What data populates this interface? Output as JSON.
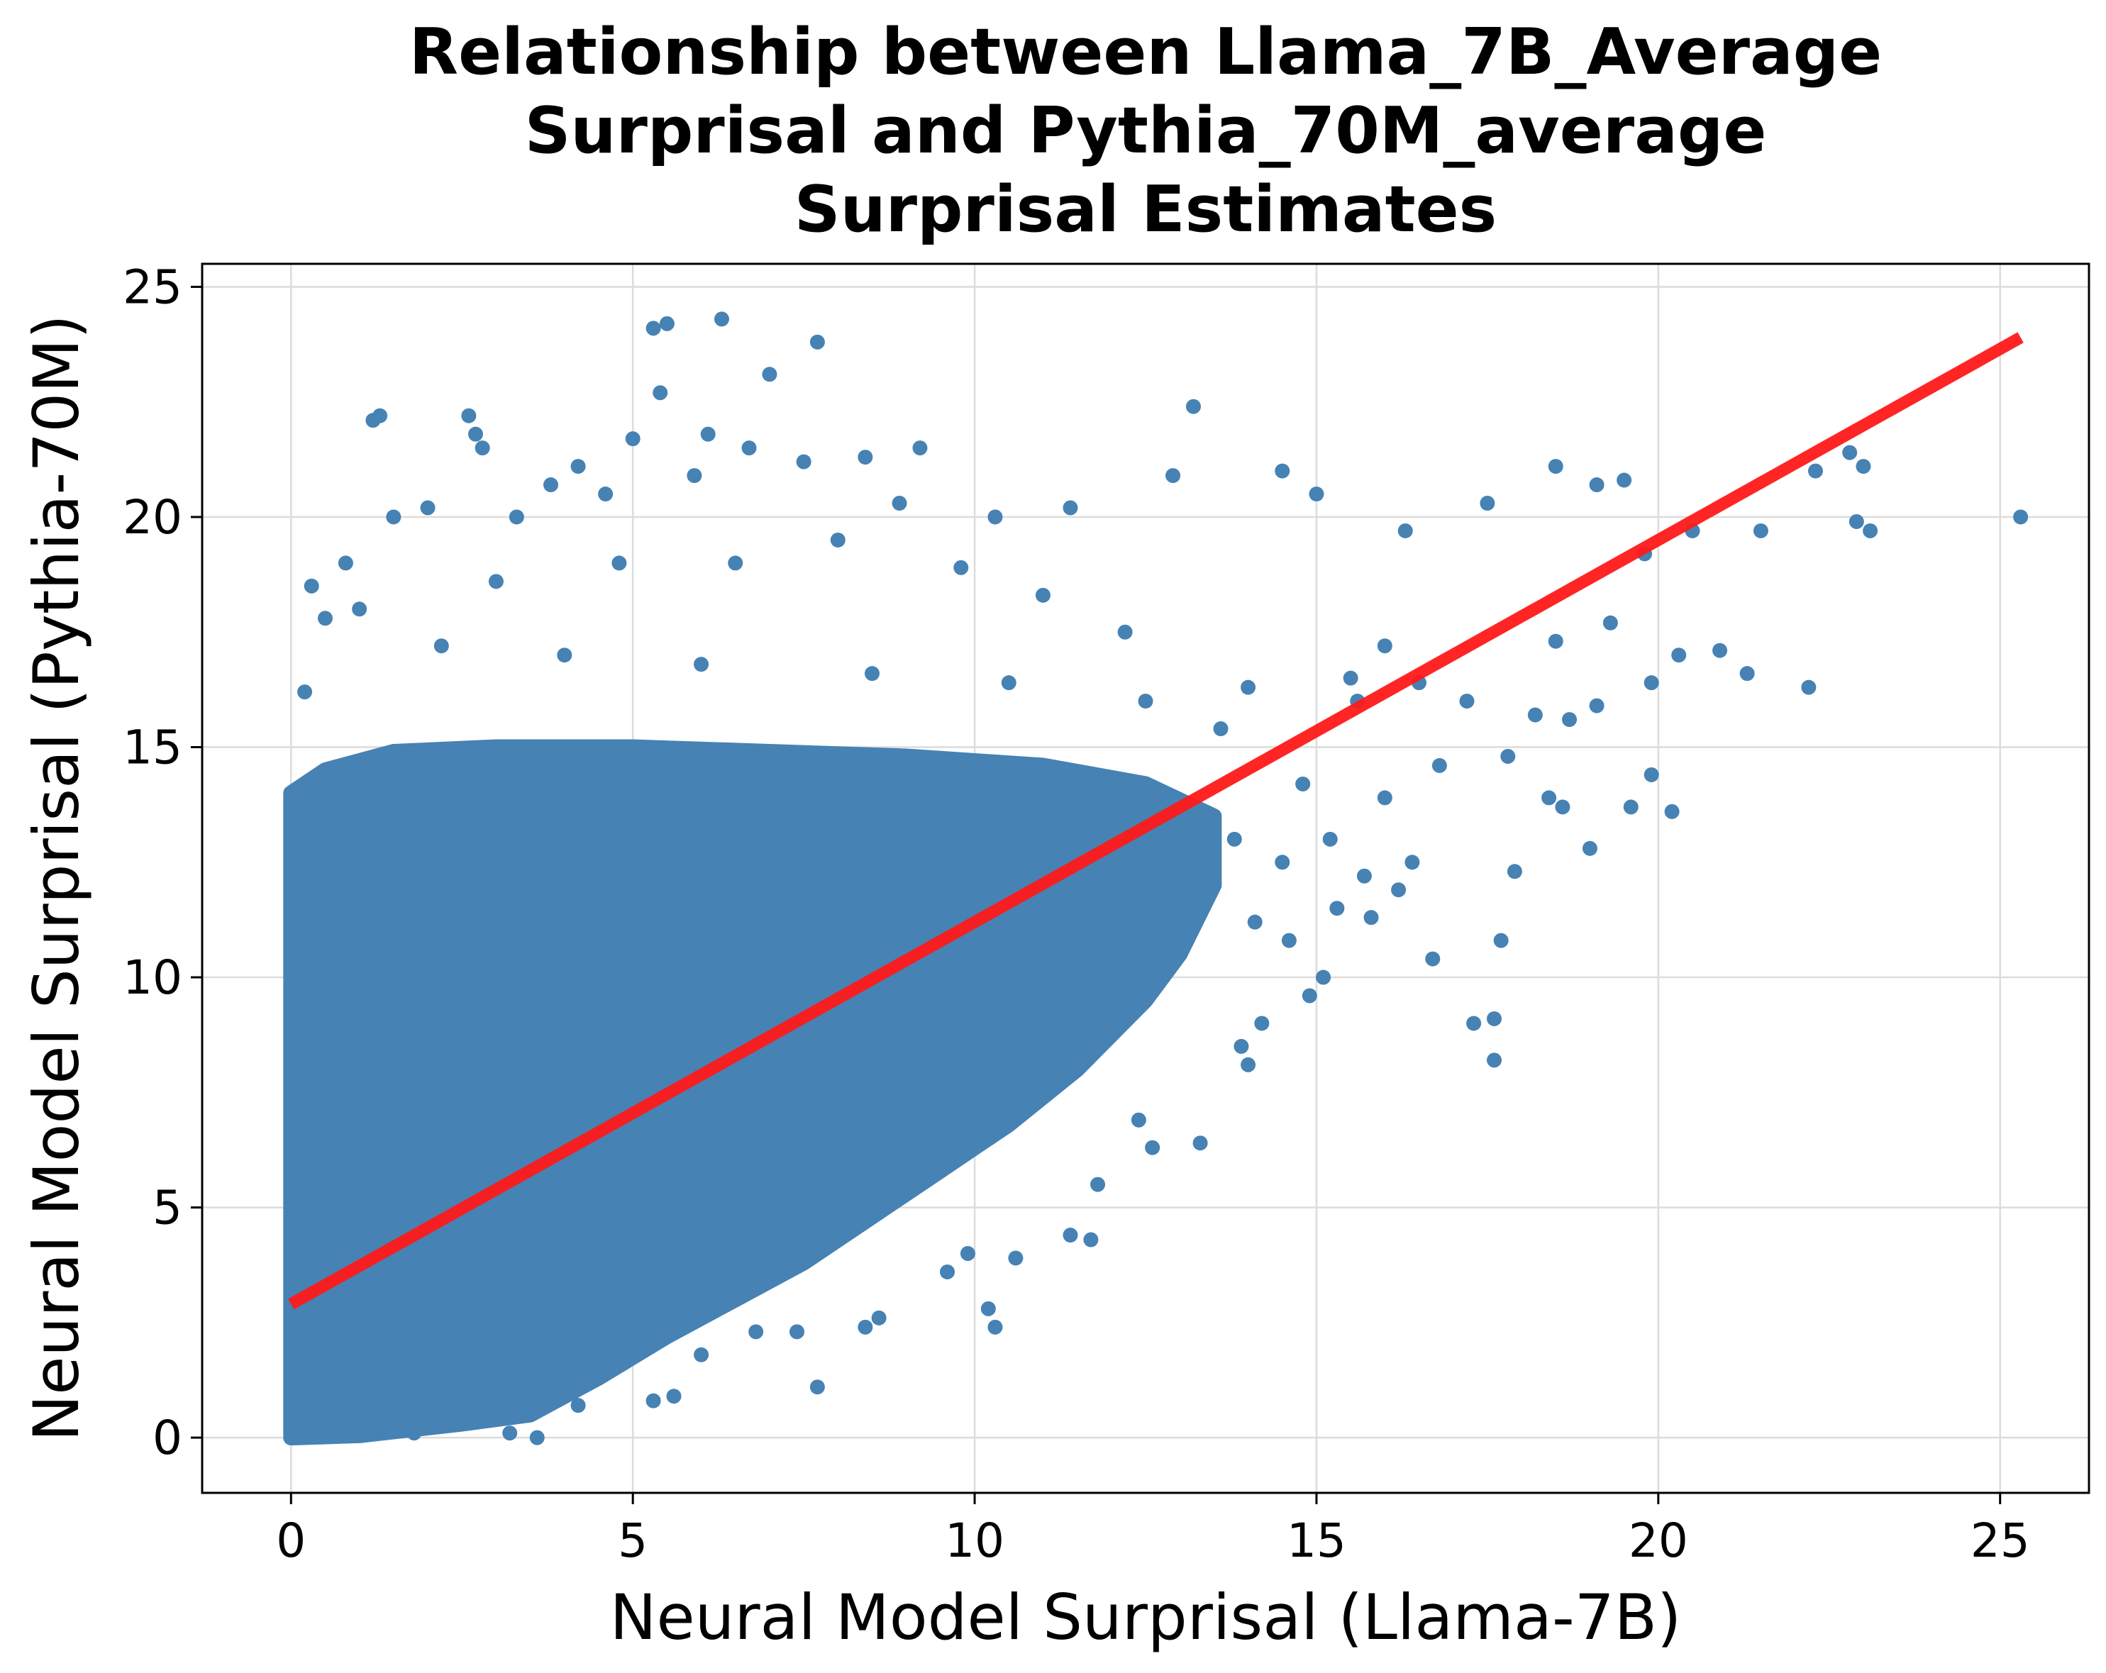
{
  "chart_data": {
    "type": "scatter",
    "title_lines": [
      "Relationship between Llama_7B_Average",
      "Surprisal and Pythia_70M_average",
      "Surprisal Estimates"
    ],
    "xlabel": "Neural Model Surprisal (Llama-7B)",
    "ylabel": "Neural Model Surprisal (Pythia-70M)",
    "xlim": [
      -1.3,
      26.3
    ],
    "ylim": [
      -1.2,
      25.5
    ],
    "xticks": [
      0,
      5,
      10,
      15,
      20,
      25
    ],
    "yticks": [
      0,
      5,
      10,
      15,
      20,
      25
    ],
    "grid": true,
    "colors": {
      "points": "#4682b4",
      "trend": "#ff1a1a"
    },
    "trend_line": {
      "x": [
        0,
        25.3
      ],
      "y": [
        2.9,
        23.9
      ]
    },
    "dense_cloud_outline": [
      [
        0,
        0
      ],
      [
        1,
        0.05
      ],
      [
        2.5,
        0.3
      ],
      [
        3.5,
        0.5
      ],
      [
        4.5,
        1.3
      ],
      [
        5.5,
        2.2
      ],
      [
        6.5,
        3.0
      ],
      [
        7.5,
        3.8
      ],
      [
        8.5,
        4.8
      ],
      [
        9.5,
        5.8
      ],
      [
        10.5,
        6.8
      ],
      [
        11.5,
        8.0
      ],
      [
        12.5,
        9.5
      ],
      [
        13,
        10.5
      ],
      [
        13.5,
        12
      ],
      [
        13.5,
        13.5
      ],
      [
        12.5,
        14.2
      ],
      [
        11,
        14.6
      ],
      [
        9,
        14.8
      ],
      [
        7,
        14.9
      ],
      [
        5,
        15.0
      ],
      [
        3,
        15.0
      ],
      [
        1.5,
        14.9
      ],
      [
        0.5,
        14.5
      ],
      [
        0,
        14.0
      ]
    ],
    "points": [
      [
        0.3,
        18.5
      ],
      [
        0.5,
        17.8
      ],
      [
        0.2,
        16.2
      ],
      [
        1.3,
        22.2
      ],
      [
        1.2,
        22.1
      ],
      [
        0.8,
        19.0
      ],
      [
        1.5,
        20.0
      ],
      [
        2.0,
        20.2
      ],
      [
        2.6,
        22.2
      ],
      [
        2.8,
        21.5
      ],
      [
        2.7,
        21.8
      ],
      [
        3.3,
        20.0
      ],
      [
        3.8,
        20.7
      ],
      [
        4.2,
        21.1
      ],
      [
        4.6,
        20.5
      ],
      [
        5.0,
        21.7
      ],
      [
        5.3,
        24.1
      ],
      [
        5.5,
        24.2
      ],
      [
        5.4,
        22.7
      ],
      [
        6.3,
        24.3
      ],
      [
        6.7,
        21.5
      ],
      [
        7.0,
        23.1
      ],
      [
        7.7,
        23.8
      ],
      [
        7.5,
        21.2
      ],
      [
        8.4,
        21.3
      ],
      [
        9.2,
        21.5
      ],
      [
        8.9,
        20.3
      ],
      [
        6.1,
        21.8
      ],
      [
        5.9,
        20.9
      ],
      [
        10.3,
        20.0
      ],
      [
        11.4,
        20.2
      ],
      [
        13.2,
        22.4
      ],
      [
        12.9,
        20.9
      ],
      [
        14.5,
        21.0
      ],
      [
        15.0,
        20.5
      ],
      [
        16.3,
        19.7
      ],
      [
        17.5,
        20.3
      ],
      [
        18.5,
        21.1
      ],
      [
        19.1,
        20.7
      ],
      [
        19.5,
        20.8
      ],
      [
        22.3,
        21.0
      ],
      [
        22.8,
        21.4
      ],
      [
        23.0,
        21.1
      ],
      [
        25.3,
        20.0
      ],
      [
        22.9,
        19.9
      ],
      [
        23.1,
        19.7
      ],
      [
        21.5,
        19.7
      ],
      [
        20.5,
        19.7
      ],
      [
        19.8,
        19.2
      ],
      [
        19.3,
        17.7
      ],
      [
        18.5,
        17.3
      ],
      [
        19.9,
        16.4
      ],
      [
        21.3,
        16.6
      ],
      [
        22.2,
        16.3
      ],
      [
        20.9,
        17.1
      ],
      [
        20.3,
        17.0
      ],
      [
        18.7,
        15.6
      ],
      [
        19.1,
        15.9
      ],
      [
        18.2,
        15.7
      ],
      [
        17.8,
        14.8
      ],
      [
        18.4,
        13.9
      ],
      [
        18.6,
        13.7
      ],
      [
        19.6,
        13.7
      ],
      [
        20.2,
        13.6
      ],
      [
        19.9,
        14.4
      ],
      [
        19.0,
        12.8
      ],
      [
        17.9,
        12.3
      ],
      [
        17.7,
        10.8
      ],
      [
        17.6,
        9.1
      ],
      [
        17.3,
        9.0
      ],
      [
        17.6,
        8.2
      ],
      [
        16.7,
        10.4
      ],
      [
        16.4,
        12.5
      ],
      [
        15.7,
        12.2
      ],
      [
        15.3,
        11.5
      ],
      [
        16.0,
        13.9
      ],
      [
        16.8,
        14.6
      ],
      [
        17.2,
        16.0
      ],
      [
        15.5,
        16.5
      ],
      [
        16.0,
        17.2
      ],
      [
        15.1,
        10.0
      ],
      [
        14.9,
        9.6
      ],
      [
        13.9,
        8.5
      ],
      [
        14.2,
        9.0
      ],
      [
        12.4,
        6.9
      ],
      [
        11.8,
        5.5
      ],
      [
        11.4,
        4.4
      ],
      [
        11.7,
        4.3
      ],
      [
        10.6,
        3.9
      ],
      [
        10.2,
        2.8
      ],
      [
        10.3,
        2.4
      ],
      [
        9.9,
        4.0
      ],
      [
        9.6,
        3.6
      ],
      [
        8.6,
        2.6
      ],
      [
        8.4,
        2.4
      ],
      [
        7.7,
        1.1
      ],
      [
        7.4,
        2.3
      ],
      [
        6.8,
        2.3
      ],
      [
        6.0,
        1.8
      ],
      [
        5.6,
        0.9
      ],
      [
        5.3,
        0.8
      ],
      [
        4.2,
        0.7
      ],
      [
        3.6,
        0.0
      ],
      [
        3.2,
        0.1
      ],
      [
        2.4,
        0.4
      ],
      [
        1.8,
        0.1
      ],
      [
        13.3,
        6.4
      ],
      [
        12.6,
        6.3
      ],
      [
        14.0,
        8.1
      ],
      [
        14.6,
        10.8
      ],
      [
        13.6,
        15.4
      ],
      [
        12.2,
        17.5
      ],
      [
        11.0,
        18.3
      ],
      [
        9.8,
        18.9
      ],
      [
        8.0,
        19.5
      ],
      [
        6.5,
        19.0
      ],
      [
        4.8,
        19.0
      ],
      [
        3.0,
        18.6
      ],
      [
        1.0,
        18.0
      ],
      [
        2.2,
        17.2
      ],
      [
        4.0,
        17.0
      ],
      [
        6.0,
        16.8
      ],
      [
        8.5,
        16.6
      ],
      [
        10.5,
        16.4
      ],
      [
        12.5,
        16.0
      ],
      [
        14.0,
        16.3
      ],
      [
        15.6,
        16.0
      ],
      [
        16.5,
        16.4
      ],
      [
        13.8,
        13.0
      ],
      [
        14.5,
        12.5
      ],
      [
        15.2,
        13.0
      ],
      [
        14.8,
        14.2
      ],
      [
        14.1,
        11.2
      ],
      [
        15.8,
        11.3
      ],
      [
        16.2,
        11.9
      ],
      [
        13.3,
        12.4
      ]
    ]
  }
}
